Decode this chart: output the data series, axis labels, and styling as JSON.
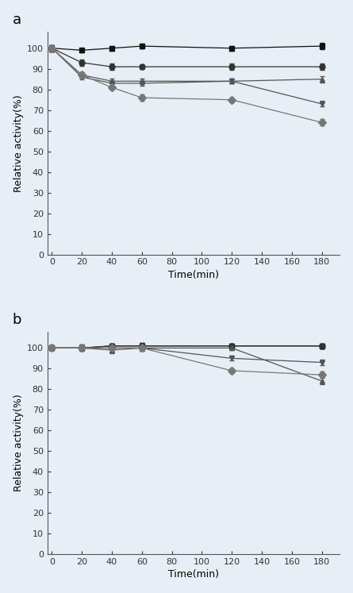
{
  "time_points": [
    0,
    20,
    40,
    60,
    120,
    180
  ],
  "chart_a": {
    "series": [
      {
        "y": [
          100,
          99,
          100,
          101,
          100,
          101
        ],
        "yerr": [
          1.5,
          1.0,
          1.2,
          1.3,
          1.2,
          1.5
        ],
        "marker": "s",
        "color": "#111111",
        "linestyle": "-"
      },
      {
        "y": [
          100,
          93,
          91,
          91,
          91,
          91
        ],
        "yerr": [
          1.5,
          1.5,
          1.5,
          1.3,
          1.5,
          1.5
        ],
        "marker": "o",
        "color": "#333333",
        "linestyle": "-"
      },
      {
        "y": [
          100,
          87,
          84,
          84,
          84,
          85
        ],
        "yerr": [
          1.5,
          1.2,
          1.2,
          1.3,
          1.2,
          1.5
        ],
        "marker": "^",
        "color": "#555555",
        "linestyle": "-"
      },
      {
        "y": [
          100,
          86,
          83,
          83,
          84,
          73
        ],
        "yerr": [
          1.5,
          1.2,
          1.2,
          1.3,
          1.2,
          1.3
        ],
        "marker": "v",
        "color": "#555555",
        "linestyle": "-"
      },
      {
        "y": [
          100,
          87,
          81,
          76,
          75,
          64
        ],
        "yerr": [
          1.5,
          1.5,
          1.2,
          1.5,
          1.2,
          1.5
        ],
        "marker": "D",
        "color": "#777777",
        "linestyle": "-"
      }
    ],
    "ylabel": "Relative activity(%)",
    "xlabel": "Time(min)",
    "label": "a",
    "ylim": [
      0,
      108
    ],
    "yticks": [
      0,
      10,
      20,
      30,
      40,
      50,
      60,
      70,
      80,
      90,
      100
    ],
    "xlim": [
      -3,
      192
    ],
    "xticks": [
      0,
      20,
      40,
      60,
      80,
      100,
      120,
      140,
      160,
      180
    ]
  },
  "chart_b": {
    "series": [
      {
        "y": [
          100,
          100,
          101,
          101,
          101,
          101
        ],
        "yerr": [
          1.2,
          1.0,
          1.2,
          1.3,
          1.2,
          1.2
        ],
        "marker": "s",
        "color": "#111111",
        "linestyle": "-"
      },
      {
        "y": [
          100,
          100,
          101,
          101,
          101,
          101
        ],
        "yerr": [
          1.2,
          1.5,
          1.2,
          1.3,
          1.2,
          1.2
        ],
        "marker": "o",
        "color": "#333333",
        "linestyle": "-"
      },
      {
        "y": [
          100,
          100,
          99,
          100,
          100,
          84
        ],
        "yerr": [
          1.2,
          1.2,
          1.5,
          1.3,
          1.2,
          1.5
        ],
        "marker": "^",
        "color": "#555555",
        "linestyle": "-"
      },
      {
        "y": [
          100,
          100,
          100,
          100,
          95,
          93
        ],
        "yerr": [
          1.2,
          1.2,
          1.2,
          1.3,
          1.2,
          1.3
        ],
        "marker": "v",
        "color": "#555555",
        "linestyle": "-"
      },
      {
        "y": [
          100,
          100,
          100,
          100,
          89,
          87
        ],
        "yerr": [
          1.2,
          1.5,
          1.2,
          1.5,
          1.2,
          1.5
        ],
        "marker": "D",
        "color": "#777777",
        "linestyle": "-"
      }
    ],
    "ylabel": "Relative activity(%)",
    "xlabel": "Time(min)",
    "label": "b",
    "ylim": [
      0,
      108
    ],
    "yticks": [
      0,
      10,
      20,
      30,
      40,
      50,
      60,
      70,
      80,
      90,
      100
    ],
    "xlim": [
      -3,
      192
    ],
    "xticks": [
      0,
      20,
      40,
      60,
      80,
      100,
      120,
      140,
      160,
      180
    ]
  },
  "background_color": "#e8eef5",
  "marker_size": 5,
  "linewidth": 0.9,
  "capsize": 2,
  "elinewidth": 0.8
}
